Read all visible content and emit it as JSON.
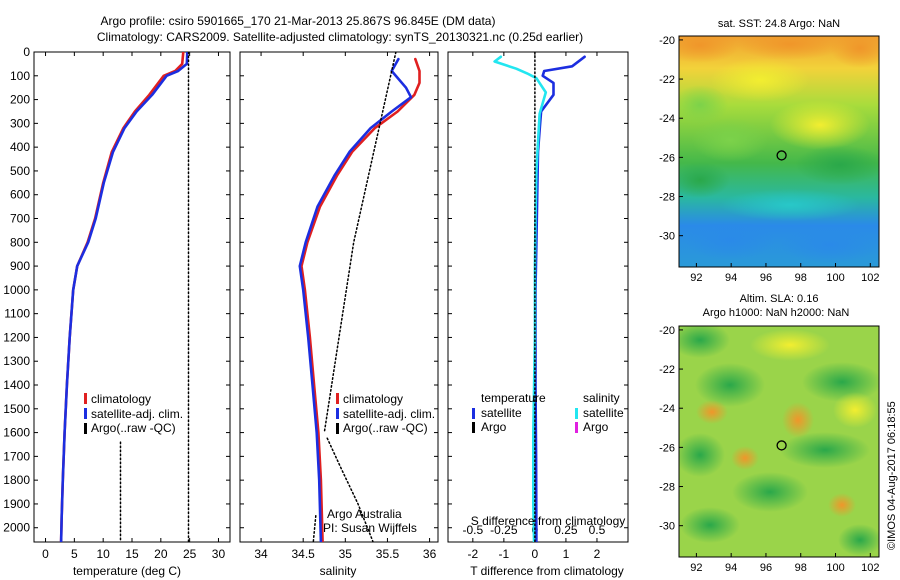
{
  "header": {
    "line1": "Argo profile: csiro 5901665_170 21-Mar-2013 25.867S 96.845E (DM data)",
    "line2": "Climatology: CARS2009. Satellite-adjusted climatology: synTS_20130321.nc (0.25d earlier)"
  },
  "credit": "©IMOS 04-Aug-2017 06:18:55",
  "colors": {
    "climatology": "#e02020",
    "satellite": "#1c2ee0",
    "argo": "#000000",
    "salinity_satellite": "#22e6f0",
    "salinity_argo": "#e020e0"
  },
  "chart_data": [
    {
      "type": "line",
      "id": "temperature",
      "xlabel": "temperature (deg C)",
      "xlim": [
        -2,
        32
      ],
      "ylim": [
        2060,
        0
      ],
      "xticks": [
        0,
        5,
        10,
        15,
        20,
        25,
        30
      ],
      "yticks": [
        0,
        100,
        200,
        300,
        400,
        500,
        600,
        700,
        800,
        900,
        1000,
        1100,
        1200,
        1300,
        1400,
        1500,
        1600,
        1700,
        1800,
        1900,
        2000
      ],
      "legend": [
        "climatology",
        "satellite-adj. clim.",
        "Argo(..raw -QC)"
      ],
      "series": [
        {
          "name": "climatology",
          "color": "#e02020",
          "points": [
            [
              23.9,
              0
            ],
            [
              23.7,
              50
            ],
            [
              22.5,
              80
            ],
            [
              20.5,
              100
            ],
            [
              18,
              180
            ],
            [
              15.5,
              250
            ],
            [
              13.5,
              320
            ],
            [
              11.5,
              420
            ],
            [
              10,
              550
            ],
            [
              8.6,
              700
            ],
            [
              7.3,
              800
            ],
            [
              5.5,
              900
            ],
            [
              4.8,
              1000
            ],
            [
              4.2,
              1200
            ],
            [
              3.7,
              1400
            ],
            [
              3.3,
              1600
            ],
            [
              3.0,
              1800
            ],
            [
              2.8,
              1950
            ],
            [
              2.7,
              2060
            ]
          ]
        },
        {
          "name": "satellite-adj. clim.",
          "color": "#1c2ee0",
          "points": [
            [
              24.6,
              0
            ],
            [
              24.5,
              50
            ],
            [
              23,
              80
            ],
            [
              21,
              100
            ],
            [
              18.5,
              180
            ],
            [
              15.8,
              250
            ],
            [
              13.7,
              320
            ],
            [
              11.7,
              420
            ],
            [
              10.1,
              550
            ],
            [
              8.7,
              700
            ],
            [
              7.4,
              800
            ],
            [
              5.5,
              900
            ],
            [
              4.8,
              1000
            ],
            [
              4.2,
              1200
            ],
            [
              3.7,
              1400
            ],
            [
              3.3,
              1600
            ],
            [
              3.0,
              1800
            ],
            [
              2.8,
              1950
            ],
            [
              2.7,
              2060
            ]
          ]
        },
        {
          "name": "Argo(..raw -QC)",
          "color": "#000000",
          "style": "dotted",
          "points": [
            [
              24.8,
              0
            ],
            [
              24.8,
              2060
            ]
          ]
        },
        {
          "name": "Argo(..raw -QC)",
          "color": "#000000",
          "style": "dotted",
          "points": [
            [
              13.0,
              1640
            ],
            [
              13.0,
              2060
            ]
          ]
        }
      ]
    },
    {
      "type": "line",
      "id": "salinity",
      "xlabel": "salinity",
      "xlim": [
        33.75,
        36.1
      ],
      "ylim": [
        2060,
        0
      ],
      "xticks": [
        34,
        34.5,
        35,
        35.5,
        36
      ],
      "legend": [
        "climatology",
        "satellite-adj. clim.",
        "Argo(..raw -QC)"
      ],
      "annotations": [
        "Argo Australia",
        "PI: Susan Wijffels"
      ],
      "series": [
        {
          "name": "climatology",
          "color": "#e02020",
          "points": [
            [
              35.83,
              30
            ],
            [
              35.88,
              80
            ],
            [
              35.88,
              130
            ],
            [
              35.82,
              180
            ],
            [
              35.62,
              250
            ],
            [
              35.35,
              320
            ],
            [
              35.08,
              420
            ],
            [
              34.9,
              520
            ],
            [
              34.7,
              650
            ],
            [
              34.55,
              800
            ],
            [
              34.48,
              900
            ],
            [
              34.52,
              1000
            ],
            [
              34.58,
              1200
            ],
            [
              34.63,
              1400
            ],
            [
              34.68,
              1600
            ],
            [
              34.71,
              1800
            ],
            [
              34.73,
              2060
            ]
          ]
        },
        {
          "name": "satellite-adj. clim.",
          "color": "#1c2ee0",
          "points": [
            [
              35.63,
              30
            ],
            [
              35.55,
              80
            ],
            [
              35.72,
              150
            ],
            [
              35.78,
              190
            ],
            [
              35.55,
              250
            ],
            [
              35.3,
              320
            ],
            [
              35.05,
              420
            ],
            [
              34.87,
              520
            ],
            [
              34.67,
              650
            ],
            [
              34.53,
              800
            ],
            [
              34.46,
              900
            ],
            [
              34.5,
              1000
            ],
            [
              34.56,
              1200
            ],
            [
              34.61,
              1400
            ],
            [
              34.66,
              1600
            ],
            [
              34.69,
              1800
            ],
            [
              34.71,
              2060
            ]
          ]
        },
        {
          "name": "Argo(..raw -QC)",
          "color": "#000000",
          "style": "dotted",
          "points": [
            [
              35.6,
              0
            ],
            [
              35.1,
              800
            ],
            [
              34.75,
              1600
            ]
          ]
        },
        {
          "name": "Argo(..raw -QC)",
          "color": "#000000",
          "style": "dotted",
          "points": [
            [
              35.33,
              2060
            ],
            [
              35.15,
              1900
            ],
            [
              34.95,
              1750
            ],
            [
              34.78,
              1620
            ]
          ]
        },
        {
          "name": "Argo(..raw -QC)",
          "color": "#000000",
          "style": "dotted",
          "points": [
            [
              34.65,
              1950
            ],
            [
              34.62,
              2060
            ]
          ]
        }
      ]
    },
    {
      "type": "line",
      "id": "difference",
      "xlabel": "T difference from climatology",
      "x2label": "S difference from climatology",
      "xlim": [
        -2.8,
        3.0
      ],
      "ylim": [
        2060,
        0
      ],
      "xticks": [
        -2,
        -1,
        0,
        1,
        2
      ],
      "sticks": [
        "-0.5",
        "-0.25",
        "0",
        "0.25",
        "0.5"
      ],
      "legend_headings": [
        "temperature",
        "salinity"
      ],
      "legend": [
        "satellite",
        "Argo",
        "satellite",
        "Argo"
      ],
      "series": [
        {
          "name": "temperature satellite",
          "color": "#1c2ee0",
          "points": [
            [
              1.6,
              20
            ],
            [
              1.2,
              60
            ],
            [
              0.3,
              80
            ],
            [
              0.25,
              100
            ],
            [
              0.6,
              130
            ],
            [
              0.6,
              180
            ],
            [
              0.2,
              250
            ],
            [
              0.15,
              330
            ],
            [
              0.1,
              420
            ],
            [
              0.08,
              560
            ],
            [
              0.05,
              800
            ],
            [
              0.02,
              1000
            ],
            [
              0.02,
              1400
            ],
            [
              0.04,
              1700
            ],
            [
              0.05,
              2060
            ]
          ]
        },
        {
          "name": "salinity satellite",
          "color": "#22e6f0",
          "points": [
            [
              -1.1,
              20
            ],
            [
              -1.3,
              40
            ],
            [
              -0.6,
              70
            ],
            [
              -0.25,
              90
            ],
            [
              0.05,
              110
            ],
            [
              0.35,
              170
            ],
            [
              0.15,
              260
            ],
            [
              0.1,
              380
            ],
            [
              0.05,
              500
            ],
            [
              0.02,
              700
            ],
            [
              0.0,
              900
            ],
            [
              0.0,
              1200
            ],
            [
              -0.05,
              1600
            ],
            [
              -0.05,
              1900
            ],
            [
              -0.03,
              2060
            ]
          ]
        },
        {
          "name": "zero line",
          "color": "#000000",
          "style": "dotted",
          "points": [
            [
              0,
              0
            ],
            [
              0,
              2060
            ]
          ]
        }
      ]
    },
    {
      "type": "heatmap",
      "id": "sst_map",
      "title": "sat. SST: 24.8 Argo: NaN",
      "xlim": [
        91,
        102.5
      ],
      "ylim": [
        -31.6,
        -19.8
      ],
      "xticks": [
        92,
        94,
        96,
        98,
        100,
        102
      ],
      "yticks": [
        -20,
        -22,
        -24,
        -26,
        -28,
        -30
      ],
      "marker": [
        96.9,
        -25.9
      ]
    },
    {
      "type": "heatmap",
      "id": "sla_map",
      "title": "Altim. SLA: 0.16",
      "subtitle": "Argo h1000: NaN h2000: NaN",
      "xlim": [
        91,
        102.5
      ],
      "ylim": [
        -31.6,
        -19.8
      ],
      "xticks": [
        92,
        94,
        96,
        98,
        100,
        102
      ],
      "yticks": [
        -20,
        -22,
        -24,
        -26,
        -28,
        -30
      ],
      "marker": [
        96.9,
        -25.9
      ]
    }
  ]
}
